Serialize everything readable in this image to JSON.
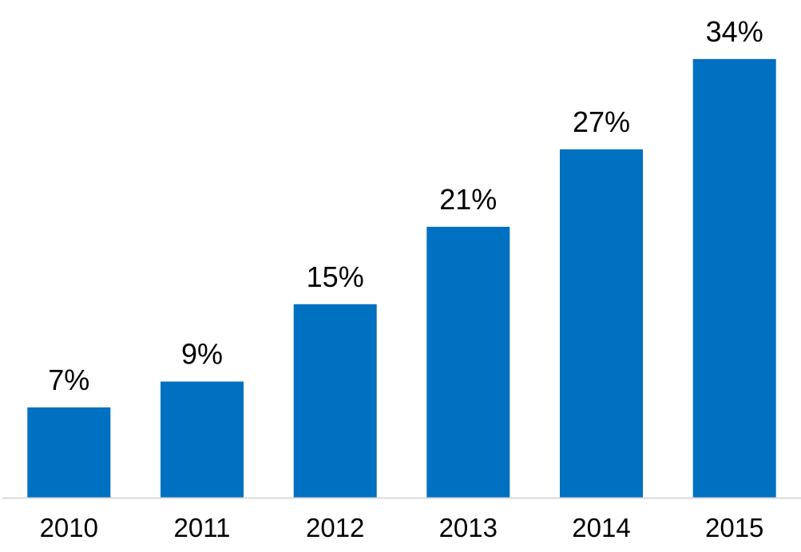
{
  "chart_data": {
    "type": "bar",
    "title": "",
    "xlabel": "",
    "ylabel": "",
    "categories": [
      "2010",
      "2011",
      "2012",
      "2013",
      "2014",
      "2015"
    ],
    "values": [
      7,
      9,
      15,
      21,
      27,
      34
    ],
    "value_labels": [
      "7%",
      "9%",
      "15%",
      "21%",
      "27%",
      "34%"
    ],
    "unit": "%",
    "ylim": [
      0,
      35
    ],
    "grid": false,
    "legend": "none",
    "bar_color": "#0070C0",
    "axis_color": "#D9D9D9"
  }
}
